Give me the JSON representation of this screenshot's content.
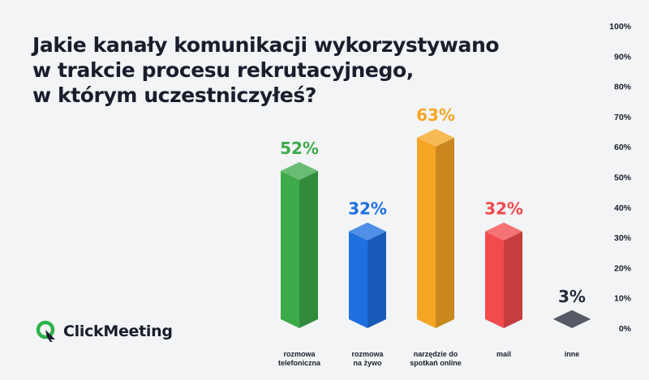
{
  "title_lines": [
    "Jakie kanały komunikacji wykorzystywano",
    "w trakcie procesu rekrutacyjnego,",
    "w którym uczestniczyłeś?"
  ],
  "brand": {
    "name": "ClickMeeting",
    "accent": "#2db34a",
    "dark": "#1a1d2b"
  },
  "chart_data": {
    "type": "bar",
    "title": "Jakie kanały komunikacji wykorzystywano w trakcie procesu rekrutacyjnego, w którym uczestniczyłeś?",
    "categories": [
      [
        "rozmowa",
        "telefoniczna"
      ],
      [
        "rozmowa",
        "na żywo"
      ],
      [
        "narzędzie do",
        "spotkań online"
      ],
      [
        "mail"
      ],
      [
        "inne"
      ]
    ],
    "values": [
      52,
      32,
      63,
      32,
      3
    ],
    "data_labels": [
      "52%",
      "32%",
      "63%",
      "32%",
      "3%"
    ],
    "colors": [
      "#3daa4a",
      "#1f6fe0",
      "#f5a524",
      "#f24a4e",
      "#262a3b"
    ],
    "ylim": [
      0,
      100
    ],
    "yticks": [
      "0%",
      "10%",
      "20%",
      "30%",
      "40%",
      "50%",
      "60%",
      "70%",
      "80%",
      "90%",
      "100%"
    ],
    "ytick_values": [
      0,
      10,
      20,
      30,
      40,
      50,
      60,
      70,
      80,
      90,
      100
    ],
    "xlabel": "",
    "ylabel": "",
    "grid": false,
    "legend": "none"
  }
}
